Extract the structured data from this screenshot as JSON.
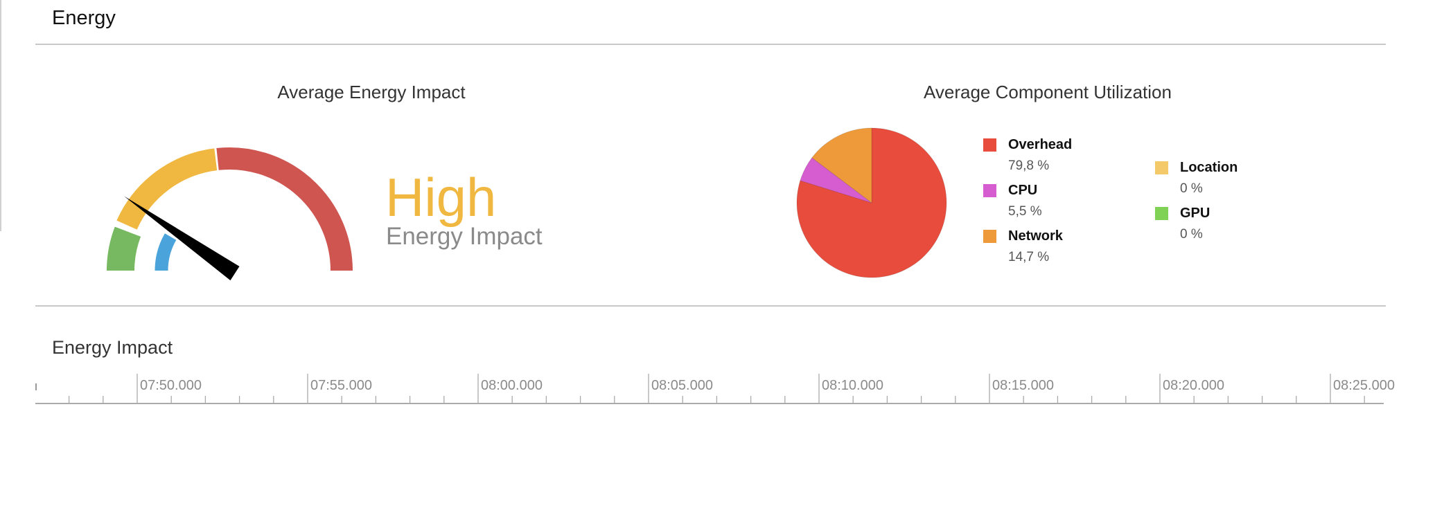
{
  "header": {
    "title": "Energy"
  },
  "energy_panel": {
    "title": "Average Energy Impact",
    "level": "High",
    "level_caption": "Energy Impact",
    "level_color": "#f0b840",
    "gauge_colors": {
      "low": "#76b960",
      "moderate": "#f0b840",
      "high": "#cf5650",
      "current": "#4aa3da",
      "needle": "#000000"
    }
  },
  "utilization_panel": {
    "title": "Average Component Utilization",
    "chart_data": {
      "type": "pie",
      "title": "Average Component Utilization",
      "slices": [
        {
          "name": "Overhead",
          "value": 79.8,
          "label": "79,8 %",
          "color": "#e84c3d"
        },
        {
          "name": "CPU",
          "value": 5.5,
          "label": "5,5 %",
          "color": "#d65dcf"
        },
        {
          "name": "Network",
          "value": 14.7,
          "label": "14,7 %",
          "color": "#ef9a3a"
        },
        {
          "name": "Location",
          "value": 0,
          "label": "0 %",
          "color": "#f3c96a"
        },
        {
          "name": "GPU",
          "value": 0,
          "label": "0 %",
          "color": "#7fd255"
        }
      ]
    }
  },
  "timeline": {
    "title": "Energy Impact",
    "ticks": [
      "07:50.000",
      "07:55.000",
      "08:00.000",
      "08:05.000",
      "08:10.000",
      "08:15.000",
      "08:20.000",
      "08:25.000"
    ]
  }
}
